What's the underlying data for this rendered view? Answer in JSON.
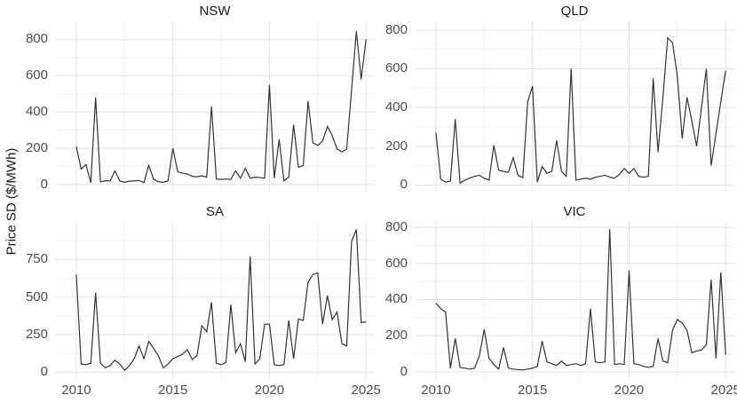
{
  "chart_data": {
    "type": "line",
    "title": "",
    "ylabel": "Price SD ($/MWh)",
    "xlabel": "",
    "facet_layout": "2x2",
    "x_frequency": "quarterly",
    "x_start": 2010,
    "x_step_years": 0.25,
    "xlim": [
      2008.9,
      2025.45
    ],
    "x_ticks": [
      2010,
      2015,
      2020,
      2025
    ],
    "x_tick_labels": [
      "2010",
      "2015",
      "2020",
      "2025"
    ],
    "x_minor": [
      2012.5,
      2017.5,
      2022.5
    ],
    "grid": "major+minor",
    "legend": "none",
    "style": {
      "line_color": "#333333",
      "grid_major_color": "#e3e3e3",
      "grid_minor_color": "#f2f2f2",
      "tick_label_color": "#4d4d4d",
      "title_color": "#1a1a1a",
      "background": "#ffffff"
    },
    "panels": [
      {
        "name": "NSW",
        "ylim": [
          -40,
          900
        ],
        "y_ticks": [
          0,
          200,
          400,
          600,
          800
        ],
        "y_minor": [
          100,
          300,
          500,
          700
        ],
        "values": [
          210,
          85,
          110,
          10,
          480,
          15,
          20,
          20,
          75,
          20,
          12,
          18,
          20,
          22,
          10,
          105,
          30,
          15,
          12,
          20,
          200,
          70,
          62,
          58,
          45,
          42,
          48,
          40,
          430,
          30,
          28,
          30,
          28,
          75,
          35,
          90,
          35,
          40,
          38,
          35,
          550,
          35,
          250,
          20,
          40,
          330,
          95,
          105,
          460,
          230,
          215,
          240,
          320,
          270,
          195,
          180,
          195,
          520,
          845,
          580,
          800
        ]
      },
      {
        "name": "QLD",
        "ylim": [
          -35,
          845
        ],
        "y_ticks": [
          0,
          200,
          400,
          600,
          800
        ],
        "y_minor": [
          100,
          300,
          500,
          700
        ],
        "values": [
          270,
          30,
          15,
          20,
          340,
          10,
          25,
          35,
          45,
          50,
          35,
          25,
          205,
          75,
          70,
          65,
          140,
          50,
          38,
          430,
          510,
          15,
          95,
          60,
          70,
          230,
          70,
          45,
          600,
          25,
          30,
          35,
          30,
          40,
          45,
          50,
          40,
          35,
          55,
          85,
          60,
          85,
          45,
          40,
          45,
          550,
          170,
          450,
          760,
          735,
          560,
          240,
          452,
          330,
          200,
          400,
          600,
          100,
          265,
          430,
          590
        ]
      },
      {
        "name": "SA",
        "ylim": [
          -45,
          1000
        ],
        "y_ticks": [
          0,
          250,
          500,
          750
        ],
        "y_minor": [
          125,
          375,
          625,
          875
        ],
        "values": [
          650,
          55,
          50,
          60,
          530,
          60,
          30,
          45,
          80,
          55,
          12,
          45,
          90,
          175,
          90,
          205,
          160,
          110,
          30,
          55,
          90,
          105,
          120,
          150,
          85,
          110,
          310,
          270,
          465,
          60,
          50,
          65,
          450,
          130,
          190,
          70,
          770,
          55,
          90,
          320,
          320,
          50,
          45,
          50,
          345,
          90,
          355,
          345,
          600,
          650,
          660,
          320,
          510,
          350,
          400,
          190,
          175,
          870,
          950,
          330,
          335
        ]
      },
      {
        "name": "VIC",
        "ylim": [
          -40,
          830
        ],
        "y_ticks": [
          0,
          200,
          400,
          600,
          800
        ],
        "y_minor": [
          100,
          300,
          500,
          700
        ],
        "values": [
          380,
          350,
          330,
          20,
          185,
          25,
          20,
          15,
          20,
          90,
          235,
          75,
          40,
          15,
          135,
          20,
          15,
          12,
          10,
          15,
          20,
          30,
          170,
          55,
          45,
          35,
          60,
          35,
          40,
          45,
          35,
          45,
          350,
          55,
          50,
          55,
          790,
          40,
          45,
          40,
          560,
          45,
          40,
          30,
          25,
          30,
          185,
          60,
          50,
          230,
          290,
          270,
          230,
          105,
          115,
          120,
          150,
          510,
          75,
          550,
          95
        ]
      }
    ]
  }
}
